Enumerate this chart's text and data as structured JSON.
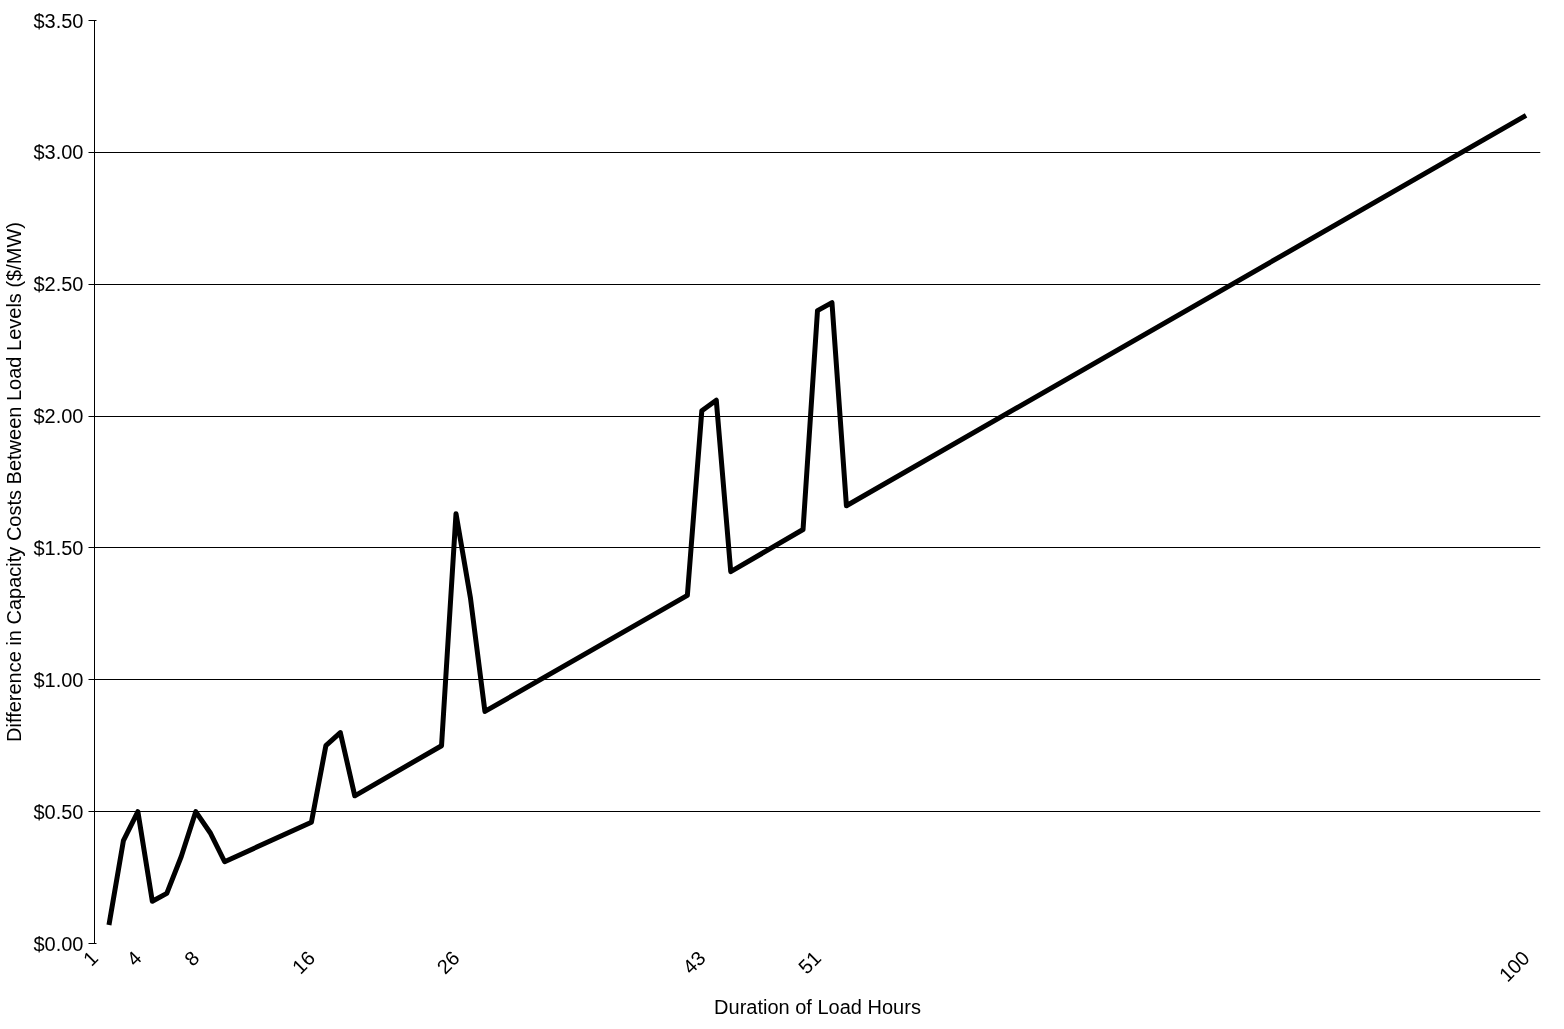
{
  "chart_data": {
    "type": "line",
    "xlabel": "Duration of Load Hours",
    "ylabel": "Difference in Capacity Costs Between Load Levels ($/MW)",
    "series": [
      {
        "color": "#000000",
        "x": [
          2,
          3,
          4,
          5,
          6,
          7,
          8,
          9,
          10,
          16,
          17,
          18,
          19,
          25,
          26,
          27,
          28,
          42,
          43,
          44,
          45,
          50,
          51,
          52,
          53,
          100
        ],
        "values": [
          0.07,
          0.39,
          0.5,
          0.16,
          0.19,
          0.33,
          0.5,
          0.42,
          0.31,
          0.46,
          0.75,
          0.8,
          0.56,
          0.75,
          1.63,
          1.31,
          0.88,
          1.32,
          2.02,
          2.06,
          1.41,
          1.57,
          2.4,
          2.43,
          1.66,
          3.14
        ]
      }
    ],
    "xlim": [
      1,
      101
    ],
    "xticks": [
      1,
      4,
      8,
      16,
      26,
      43,
      51,
      100
    ],
    "ylim": [
      0,
      3.5
    ],
    "yticks": [
      {
        "value": 0,
        "label": "$0.00"
      },
      {
        "value": 0.5,
        "label": "$0.50"
      },
      {
        "value": 1,
        "label": "$1.00"
      },
      {
        "value": 1.5,
        "label": "$1.50"
      },
      {
        "value": 2,
        "label": "$2.00"
      },
      {
        "value": 2.5,
        "label": "$2.50"
      },
      {
        "value": 3,
        "label": "$3.00"
      },
      {
        "value": 3.5,
        "label": "$3.50"
      }
    ],
    "grid": "y",
    "marker": "none",
    "line_style": "solid"
  }
}
